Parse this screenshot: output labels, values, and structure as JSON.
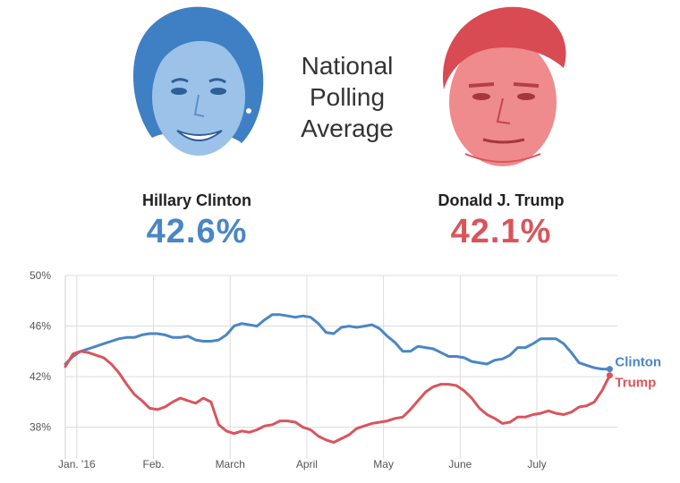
{
  "colors": {
    "clinton": "#4a86c5",
    "trump": "#d9555b"
  },
  "header": {
    "title_lines": [
      "National",
      "Polling",
      "Average"
    ]
  },
  "candidates": {
    "clinton": {
      "name": "Hillary Clinton",
      "value": "42.6%"
    },
    "trump": {
      "name": "Donald J. Trump",
      "value": "42.1%"
    }
  },
  "chart_data": {
    "type": "line",
    "title": "National Polling Average",
    "xlabel": "",
    "ylabel": "",
    "x_range": [
      0,
      7.2
    ],
    "x_ticks": [
      {
        "x": 0.15,
        "label": "Jan. '16"
      },
      {
        "x": 1.15,
        "label": "Feb."
      },
      {
        "x": 2.15,
        "label": "March"
      },
      {
        "x": 3.15,
        "label": "April"
      },
      {
        "x": 4.15,
        "label": "May"
      },
      {
        "x": 5.15,
        "label": "June"
      },
      {
        "x": 6.15,
        "label": "July"
      }
    ],
    "ylim": [
      35.5,
      50
    ],
    "y_ticks": [
      {
        "y": 38,
        "label": "38%"
      },
      {
        "y": 42,
        "label": "42%"
      },
      {
        "y": 46,
        "label": "46%"
      },
      {
        "y": 50,
        "label": "50%"
      }
    ],
    "grid": true,
    "series": [
      {
        "name": "Clinton",
        "end_label": "Clinton",
        "x": [
          0,
          0.1,
          0.2,
          0.3,
          0.4,
          0.5,
          0.6,
          0.7,
          0.8,
          0.9,
          1.0,
          1.1,
          1.2,
          1.3,
          1.4,
          1.5,
          1.6,
          1.7,
          1.8,
          1.9,
          2.0,
          2.1,
          2.2,
          2.3,
          2.4,
          2.5,
          2.6,
          2.7,
          2.8,
          2.9,
          3.0,
          3.1,
          3.2,
          3.3,
          3.4,
          3.5,
          3.6,
          3.7,
          3.8,
          3.9,
          4.0,
          4.1,
          4.2,
          4.3,
          4.4,
          4.5,
          4.6,
          4.7,
          4.8,
          4.9,
          5.0,
          5.1,
          5.2,
          5.3,
          5.4,
          5.5,
          5.6,
          5.7,
          5.8,
          5.9,
          6.0,
          6.1,
          6.2,
          6.3,
          6.4,
          6.5,
          6.6,
          6.7,
          6.8,
          6.9,
          7.0,
          7.1
        ],
        "values": [
          43.0,
          43.6,
          44.0,
          44.2,
          44.4,
          44.6,
          44.8,
          45.0,
          45.1,
          45.1,
          45.3,
          45.4,
          45.4,
          45.3,
          45.1,
          45.1,
          45.2,
          44.9,
          44.8,
          44.8,
          44.9,
          45.3,
          46.0,
          46.2,
          46.1,
          46.0,
          46.5,
          46.9,
          46.9,
          46.8,
          46.7,
          46.8,
          46.7,
          46.2,
          45.5,
          45.4,
          45.9,
          46.0,
          45.9,
          46.0,
          46.1,
          45.8,
          45.2,
          44.7,
          44.0,
          44.0,
          44.4,
          44.3,
          44.2,
          43.9,
          43.6,
          43.6,
          43.5,
          43.2,
          43.1,
          43.0,
          43.3,
          43.4,
          43.7,
          44.3,
          44.3,
          44.6,
          45.0,
          45.0,
          45.0,
          44.6,
          43.9,
          43.1,
          42.9,
          42.7,
          42.6,
          42.6
        ]
      },
      {
        "name": "Trump",
        "end_label": "Trump",
        "x": [
          0,
          0.1,
          0.2,
          0.3,
          0.4,
          0.5,
          0.6,
          0.7,
          0.8,
          0.9,
          1.0,
          1.1,
          1.2,
          1.3,
          1.4,
          1.5,
          1.6,
          1.7,
          1.8,
          1.9,
          2.0,
          2.1,
          2.2,
          2.3,
          2.4,
          2.5,
          2.6,
          2.7,
          2.8,
          2.9,
          3.0,
          3.1,
          3.2,
          3.3,
          3.4,
          3.5,
          3.6,
          3.7,
          3.8,
          3.9,
          4.0,
          4.1,
          4.2,
          4.3,
          4.4,
          4.5,
          4.6,
          4.7,
          4.8,
          4.9,
          5.0,
          5.1,
          5.2,
          5.3,
          5.4,
          5.5,
          5.6,
          5.7,
          5.8,
          5.9,
          6.0,
          6.1,
          6.2,
          6.3,
          6.4,
          6.5,
          6.6,
          6.7,
          6.8,
          6.9,
          7.0,
          7.1
        ],
        "values": [
          42.8,
          43.8,
          44.0,
          43.9,
          43.7,
          43.5,
          43.0,
          42.3,
          41.4,
          40.6,
          40.1,
          39.5,
          39.4,
          39.6,
          40.0,
          40.3,
          40.1,
          39.9,
          40.3,
          40.0,
          38.2,
          37.7,
          37.5,
          37.7,
          37.6,
          37.8,
          38.1,
          38.2,
          38.5,
          38.5,
          38.4,
          38.0,
          37.8,
          37.3,
          37.0,
          36.8,
          37.1,
          37.4,
          37.9,
          38.1,
          38.3,
          38.4,
          38.5,
          38.7,
          38.8,
          39.4,
          40.1,
          40.8,
          41.2,
          41.4,
          41.4,
          41.3,
          40.9,
          40.3,
          39.5,
          39.0,
          38.7,
          38.3,
          38.4,
          38.8,
          38.8,
          39.0,
          39.1,
          39.3,
          39.1,
          39.0,
          39.2,
          39.6,
          39.7,
          40.0,
          40.9,
          42.1
        ]
      }
    ]
  }
}
